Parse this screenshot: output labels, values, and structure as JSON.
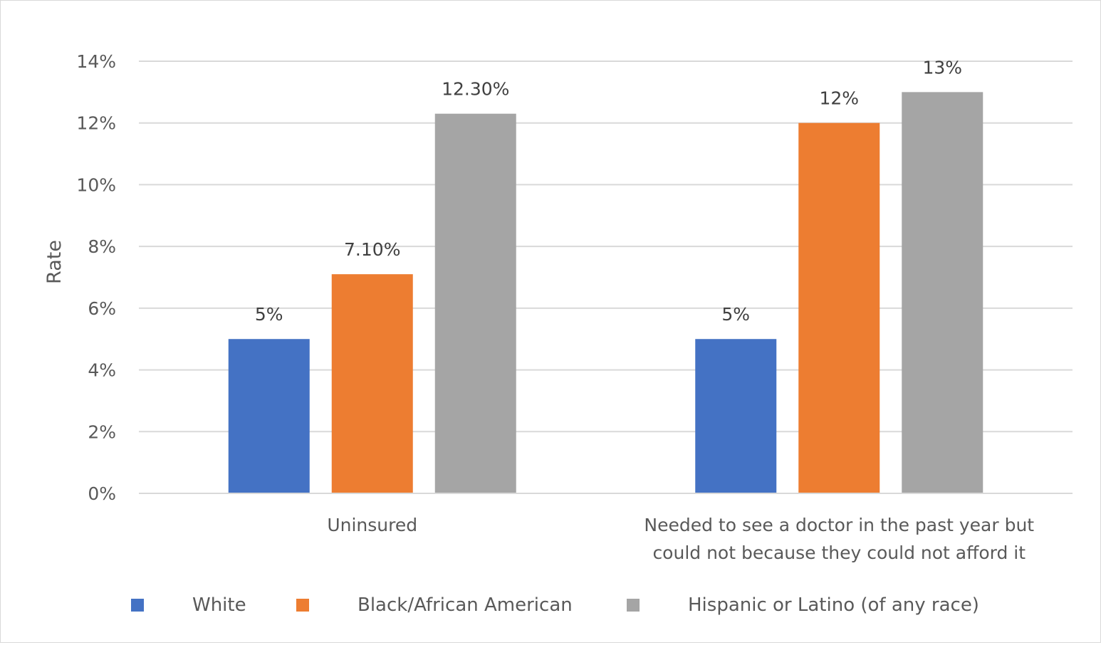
{
  "chart_data": {
    "type": "bar",
    "ylabel": "Rate",
    "xlabel": "",
    "ylim": [
      0,
      14
    ],
    "yticks": [
      {
        "value": 0,
        "label": "0%"
      },
      {
        "value": 2,
        "label": "2%"
      },
      {
        "value": 4,
        "label": "4%"
      },
      {
        "value": 6,
        "label": "6%"
      },
      {
        "value": 8,
        "label": "8%"
      },
      {
        "value": 10,
        "label": "10%"
      },
      {
        "value": 12,
        "label": "12%"
      },
      {
        "value": 14,
        "label": "14%"
      }
    ],
    "categories": [
      [
        "Uninsured"
      ],
      [
        "Needed to see a doctor in the past year but",
        "could not because they could not afford it"
      ]
    ],
    "series": [
      {
        "name": "White",
        "color": "#4472c4",
        "values": [
          5,
          5
        ],
        "labels": [
          "5%",
          "5%"
        ]
      },
      {
        "name": "Black/African American",
        "color": "#ed7d31",
        "values": [
          7.1,
          12
        ],
        "labels": [
          "7.10%",
          "12%"
        ]
      },
      {
        "name": "Hispanic or Latino (of any race)",
        "color": "#a5a5a5",
        "values": [
          12.3,
          13
        ],
        "labels": [
          "12.30%",
          "13%"
        ]
      }
    ],
    "grid": true,
    "legend_position": "bottom"
  }
}
